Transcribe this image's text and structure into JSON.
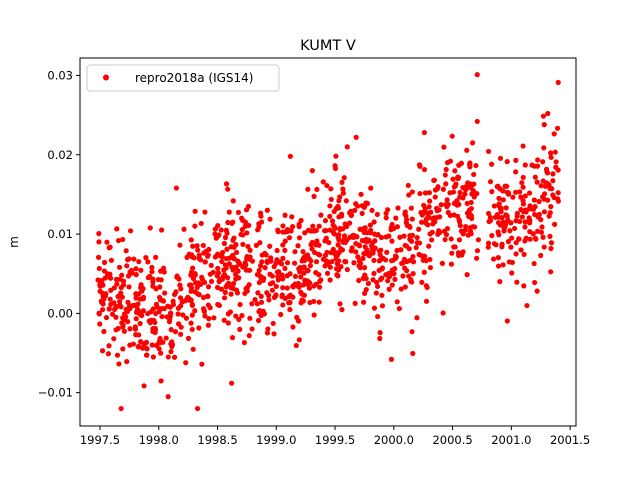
{
  "chart_data": {
    "type": "scatter",
    "title": "KUMT V",
    "xlabel": "",
    "ylabel": "m",
    "xlim": [
      1997.33,
      2001.55
    ],
    "ylim": [
      -0.0142,
      0.0322
    ],
    "x_ticks": [
      1997.5,
      1998.0,
      1998.5,
      1999.0,
      1999.5,
      2000.0,
      2000.5,
      2001.0,
      2001.5
    ],
    "x_tick_labels": [
      "1997.5",
      "1998.0",
      "1998.5",
      "1999.0",
      "1999.5",
      "2000.0",
      "2000.5",
      "2001.0",
      "2001.5"
    ],
    "y_ticks": [
      -0.01,
      0.0,
      0.01,
      0.02,
      0.03
    ],
    "y_tick_labels": [
      "−0.01",
      "0.00",
      "0.01",
      "0.02",
      "0.03"
    ],
    "grid": false,
    "legend_position": "top-left",
    "marker_color": "#ff0000",
    "series": [
      {
        "name": "repro2018a (IGS14)",
        "x_start": 1997.48,
        "x_end": 2001.4,
        "gap_after": 2000.72,
        "gap_before": 2000.8,
        "trend_start": 0.0,
        "trend_end": 0.015,
        "scatter_std": 0.004,
        "n_points": 1250,
        "highlighted_points": [
          {
            "x": 2000.71,
            "y": 0.0301
          },
          {
            "x": 1997.68,
            "y": -0.012
          },
          {
            "x": 1998.33,
            "y": -0.012
          },
          {
            "x": 1998.08,
            "y": -0.0105
          },
          {
            "x": 1999.68,
            "y": 0.0222
          },
          {
            "x": 2000.26,
            "y": 0.0228
          },
          {
            "x": 2001.31,
            "y": 0.0252
          },
          {
            "x": 1999.98,
            "y": -0.0058
          },
          {
            "x": 1998.15,
            "y": 0.0158
          },
          {
            "x": 1999.12,
            "y": 0.0198
          },
          {
            "x": 2000.71,
            "y": 0.0242
          },
          {
            "x": 2000.67,
            "y": 0.0215
          },
          {
            "x": 2001.28,
            "y": 0.0238
          },
          {
            "x": 1998.62,
            "y": -0.0088
          }
        ]
      }
    ]
  }
}
